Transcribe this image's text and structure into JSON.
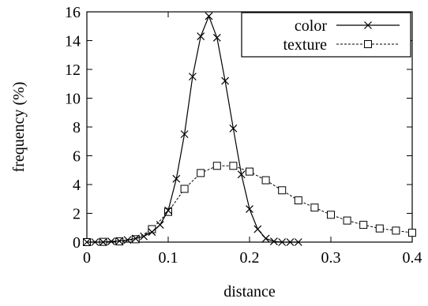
{
  "chart_data": {
    "type": "line",
    "xlabel": "distance",
    "ylabel": "frequency (%)",
    "xlim": [
      0,
      0.4
    ],
    "ylim": [
      0,
      16
    ],
    "xticks": [
      "0",
      "0.1",
      "0.2",
      "0.3",
      "0.4"
    ],
    "yticks": [
      "0",
      "2",
      "4",
      "6",
      "8",
      "10",
      "12",
      "14",
      "16"
    ],
    "grid": false,
    "legend_position": "top-right",
    "series": [
      {
        "name": "color",
        "marker": "cross",
        "line_style": "solid",
        "color": "#000000",
        "x": [
          0,
          0.01,
          0.02,
          0.03,
          0.04,
          0.05,
          0.06,
          0.07,
          0.08,
          0.09,
          0.1,
          0.11,
          0.12,
          0.13,
          0.14,
          0.15,
          0.16,
          0.17,
          0.18,
          0.19,
          0.2,
          0.21,
          0.22,
          0.23,
          0.24,
          0.25,
          0.26
        ],
        "y": [
          0,
          0,
          0,
          0.05,
          0.08,
          0.15,
          0.25,
          0.4,
          0.7,
          1.2,
          2.2,
          4.4,
          7.5,
          11.5,
          14.3,
          15.7,
          14.2,
          11.2,
          7.9,
          4.7,
          2.3,
          0.9,
          0.25,
          0.05,
          0,
          0,
          0
        ]
      },
      {
        "name": "texture",
        "marker": "square",
        "line_style": "dashed",
        "color": "#000000",
        "x": [
          0,
          0.02,
          0.04,
          0.06,
          0.08,
          0.1,
          0.12,
          0.14,
          0.16,
          0.18,
          0.2,
          0.22,
          0.24,
          0.26,
          0.28,
          0.3,
          0.32,
          0.34,
          0.36,
          0.38,
          0.4
        ],
        "y": [
          0,
          0.02,
          0.05,
          0.2,
          0.9,
          2.1,
          3.7,
          4.8,
          5.3,
          5.3,
          4.9,
          4.3,
          3.6,
          2.9,
          2.4,
          1.9,
          1.5,
          1.2,
          0.95,
          0.8,
          0.65
        ]
      }
    ]
  }
}
